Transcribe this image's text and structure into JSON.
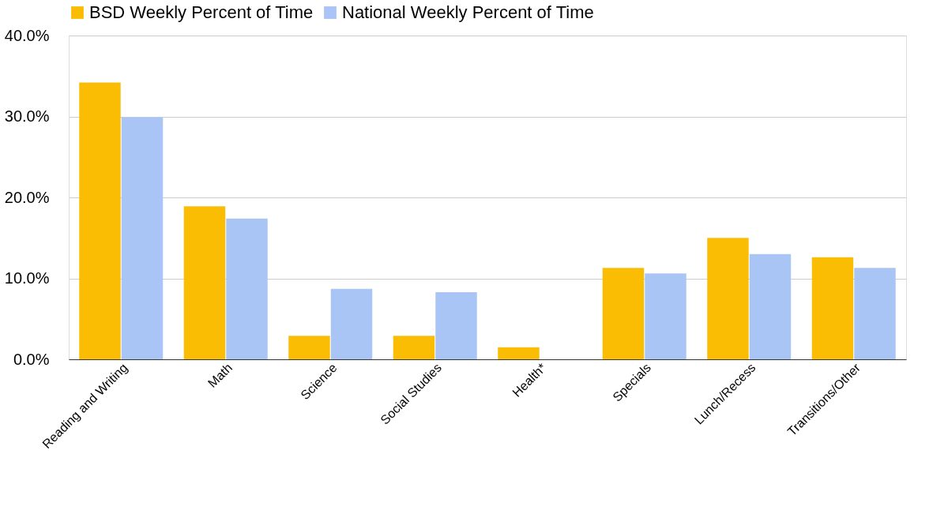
{
  "chart_data": {
    "type": "bar",
    "categories": [
      "Reading and Writing",
      "Math",
      "Science",
      "Social Studies",
      "Health*",
      "Specials",
      "Lunch/Recess",
      "Transitions/Other"
    ],
    "series": [
      {
        "name": "BSD Weekly Percent of Time",
        "color": "#fbbc04",
        "values": [
          34.2,
          18.9,
          2.9,
          2.9,
          1.5,
          11.3,
          15.0,
          12.6
        ]
      },
      {
        "name": "National Weekly Percent of Time",
        "color": "#a8c5f5",
        "values": [
          29.9,
          17.4,
          8.7,
          8.3,
          0,
          10.6,
          13.0,
          11.3
        ]
      }
    ],
    "ylim": [
      0,
      40
    ],
    "yticks": [
      {
        "value": 0,
        "label": "0.0%"
      },
      {
        "value": 10,
        "label": "10.0%"
      },
      {
        "value": 20,
        "label": "20.0%"
      },
      {
        "value": 30,
        "label": "30.0%"
      },
      {
        "value": 40,
        "label": "40.0%"
      }
    ],
    "grid": "y",
    "legend": "top"
  }
}
